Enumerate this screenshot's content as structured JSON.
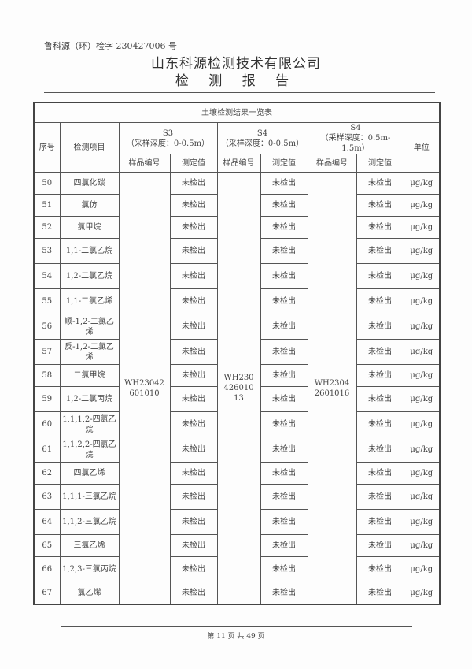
{
  "header": {
    "doc_no": "鲁科源（环）检字 230427006 号",
    "company": "山东科源检测技术有限公司",
    "title": "检 测 报 告"
  },
  "table": {
    "caption": "土壤检测结果一览表",
    "col_no": "序号",
    "col_item": "检测项目",
    "col_unit": "单位",
    "groups": [
      {
        "site": "S3",
        "depth": "（采样深度：0-0.5m）",
        "sample_id": "WH23042601010"
      },
      {
        "site": "S4",
        "depth": "（采样深度：0-0.5m）",
        "sample_id": "WH23042601013"
      },
      {
        "site": "S4",
        "depth": "（采样深度：0.5m-1.5m）",
        "sample_id": "WH23042601016"
      }
    ],
    "sample_id_label": "样品编号",
    "value_label": "测定值",
    "rows": [
      {
        "no": "50",
        "item": "四氯化碳",
        "values": [
          "未检出",
          "未检出",
          "未检出"
        ],
        "unit": "μg/kg"
      },
      {
        "no": "51",
        "item": "氯仿",
        "values": [
          "未检出",
          "未检出",
          "未检出"
        ],
        "unit": "μg/kg"
      },
      {
        "no": "52",
        "item": "氯甲烷",
        "values": [
          "未检出",
          "未检出",
          "未检出"
        ],
        "unit": "μg/kg"
      },
      {
        "no": "53",
        "item": "1,1-二氯乙烷",
        "values": [
          "未检出",
          "未检出",
          "未检出"
        ],
        "unit": "μg/kg"
      },
      {
        "no": "54",
        "item": "1,2-二氯乙烷",
        "values": [
          "未检出",
          "未检出",
          "未检出"
        ],
        "unit": "μg/kg"
      },
      {
        "no": "55",
        "item": "1,1-二氯乙烯",
        "values": [
          "未检出",
          "未检出",
          "未检出"
        ],
        "unit": "μg/kg"
      },
      {
        "no": "56",
        "item": "顺-1,2-二氯乙烯",
        "values": [
          "未检出",
          "未检出",
          "未检出"
        ],
        "unit": "μg/kg"
      },
      {
        "no": "57",
        "item": "反-1,2-二氯乙烯",
        "values": [
          "未检出",
          "未检出",
          "未检出"
        ],
        "unit": "μg/kg"
      },
      {
        "no": "58",
        "item": "二氯甲烷",
        "values": [
          "未检出",
          "未检出",
          "未检出"
        ],
        "unit": "μg/kg"
      },
      {
        "no": "59",
        "item": "1,2-二氯丙烷",
        "values": [
          "未检出",
          "未检出",
          "未检出"
        ],
        "unit": "μg/kg"
      },
      {
        "no": "60",
        "item": "1,1,1,2-四氯乙烷",
        "values": [
          "未检出",
          "未检出",
          "未检出"
        ],
        "unit": "μg/kg"
      },
      {
        "no": "61",
        "item": "1,1,2,2-四氯乙烷",
        "values": [
          "未检出",
          "未检出",
          "未检出"
        ],
        "unit": "μg/kg"
      },
      {
        "no": "62",
        "item": "四氯乙烯",
        "values": [
          "未检出",
          "未检出",
          "未检出"
        ],
        "unit": "μg/kg"
      },
      {
        "no": "63",
        "item": "1,1,1-三氯乙烷",
        "values": [
          "未检出",
          "未检出",
          "未检出"
        ],
        "unit": "μg/kg"
      },
      {
        "no": "64",
        "item": "1,1,2-三氯乙烷",
        "values": [
          "未检出",
          "未检出",
          "未检出"
        ],
        "unit": "μg/kg"
      },
      {
        "no": "65",
        "item": "三氯乙烯",
        "values": [
          "未检出",
          "未检出",
          "未检出"
        ],
        "unit": "μg/kg"
      },
      {
        "no": "66",
        "item": "1,2,3-三氯丙烷",
        "values": [
          "未检出",
          "未检出",
          "未检出"
        ],
        "unit": "μg/kg"
      },
      {
        "no": "67",
        "item": "氯乙烯",
        "values": [
          "未检出",
          "未检出",
          "未检出"
        ],
        "unit": "μg/kg"
      }
    ]
  },
  "footer": {
    "page": "第 11 页 共 49 页"
  }
}
